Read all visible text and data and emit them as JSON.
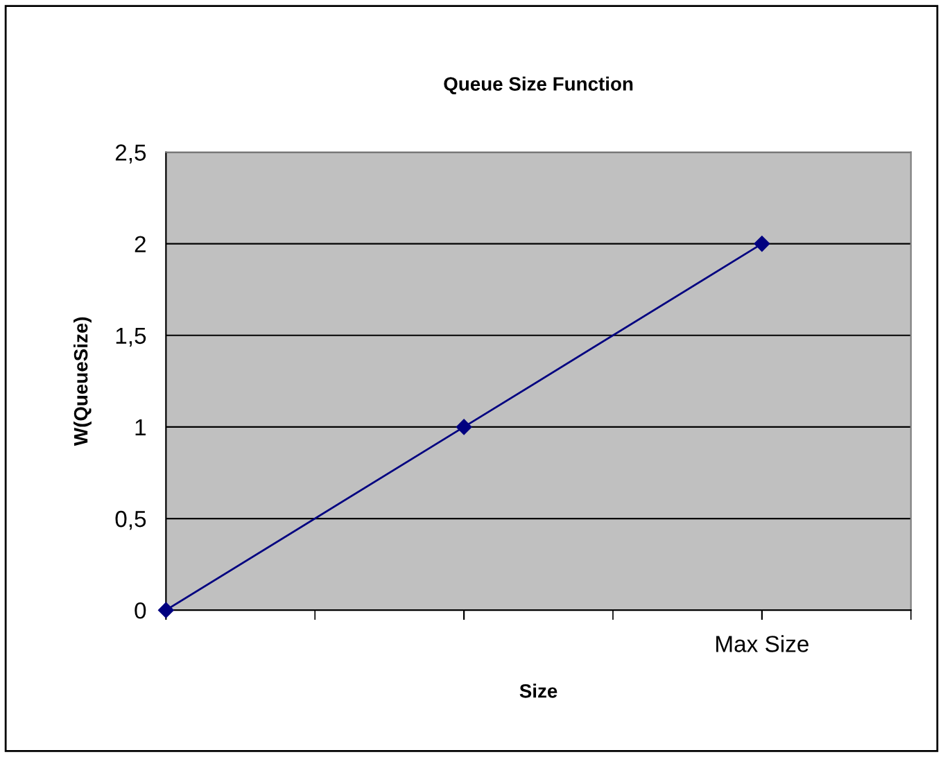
{
  "chart_data": {
    "type": "line",
    "title": "Queue Size Function",
    "xlabel": "Size",
    "ylabel": "W(QueueSize)",
    "categories": [
      null,
      null,
      "Max Size"
    ],
    "series": [
      {
        "color": "#000080",
        "values": [
          0,
          1,
          2
        ]
      }
    ],
    "ylim": [
      0,
      2.5
    ],
    "yticks": [
      {
        "value": 0,
        "label": "0"
      },
      {
        "value": 0.5,
        "label": "0,5"
      },
      {
        "value": 1,
        "label": "1"
      },
      {
        "value": 1.5,
        "label": "1,5"
      },
      {
        "value": 2,
        "label": "2"
      },
      {
        "value": 2.5,
        "label": "2,5"
      }
    ],
    "grid": "y",
    "marker": "diamond",
    "line_style": "solid",
    "legend": false
  }
}
